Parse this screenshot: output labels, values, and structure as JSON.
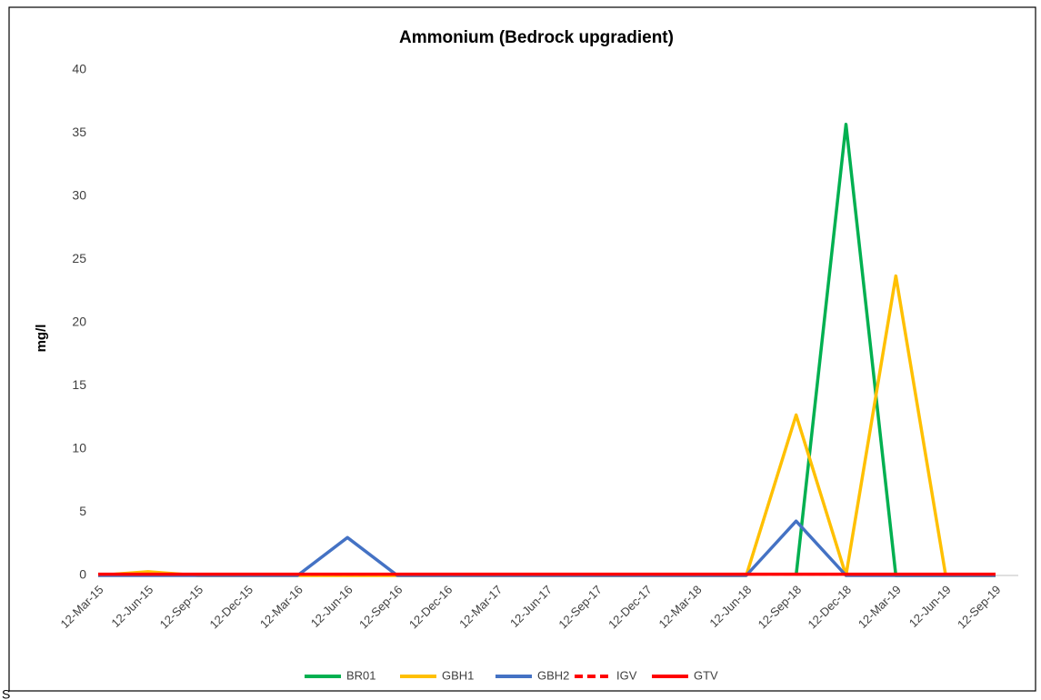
{
  "chart_data": {
    "type": "line",
    "title": "Ammonium (Bedrock upgradient)",
    "y_label": "mg/l",
    "categories": [
      "12-Mar-15",
      "12-Jun-15",
      "12-Sep-15",
      "12-Dec-15",
      "12-Mar-16",
      "12-Jun-16",
      "12-Sep-16",
      "12-Dec-16",
      "12-Mar-17",
      "12-Jun-17",
      "12-Sep-17",
      "12-Dec-17",
      "12-Mar-18",
      "12-Jun-18",
      "12-Sep-18",
      "12-Dec-18",
      "12-Mar-19",
      "12-Jun-19",
      "12-Sep-19"
    ],
    "series": [
      {
        "name": "BR01",
        "color": "#00b050",
        "values": [
          null,
          null,
          null,
          null,
          null,
          null,
          null,
          null,
          null,
          null,
          null,
          null,
          null,
          null,
          0,
          35.7,
          0,
          0,
          0
        ]
      },
      {
        "name": "GBH1",
        "color": "#ffc000",
        "values": [
          0,
          0.3,
          0,
          0,
          0,
          0,
          0,
          0,
          0,
          0,
          0,
          0,
          0,
          0,
          12.7,
          0,
          23.7,
          0,
          0
        ]
      },
      {
        "name": "GBH2",
        "color": "#4472c4",
        "values": [
          0,
          0,
          0,
          0,
          0,
          3,
          0,
          0,
          0,
          0,
          0,
          0,
          0,
          0,
          4.3,
          0,
          0,
          0,
          0
        ]
      },
      {
        "name": "IGV",
        "color": "#ff0000",
        "dashed": true,
        "values": [
          0.1,
          0.1,
          0.1,
          0.1,
          0.1,
          0.1,
          0.1,
          0.1,
          0.1,
          0.1,
          0.1,
          0.1,
          0.1,
          0.1,
          0.1,
          0.1,
          0.1,
          0.1,
          0.1
        ]
      },
      {
        "name": "GTV",
        "color": "#ff0000",
        "values": [
          0.1,
          0.1,
          0.1,
          0.1,
          0.1,
          0.1,
          0.1,
          0.1,
          0.1,
          0.1,
          0.1,
          0.1,
          0.1,
          0.1,
          0.1,
          0.1,
          0.1,
          0.1,
          0.1
        ]
      }
    ],
    "ylim": [
      0,
      40
    ],
    "yticks": [
      0,
      5,
      10,
      15,
      20,
      25,
      30,
      35,
      40
    ],
    "grid": false,
    "legend": "bottom",
    "footer_text": "S"
  }
}
